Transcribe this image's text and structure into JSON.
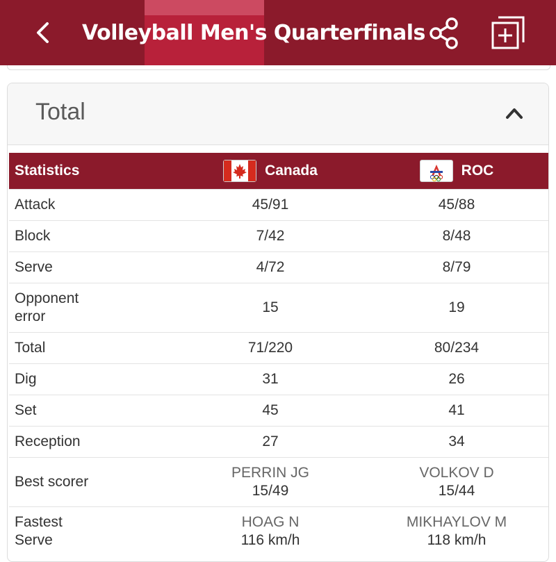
{
  "header": {
    "title": "Volleyball Men's Quarterfinals",
    "back_icon": "chevron-left-icon",
    "share_icon": "share-icon",
    "add_icon": "add-to-list-icon",
    "background_color": "#8b1a2b"
  },
  "section": {
    "title": "Total",
    "toggle_icon": "chevron-up-icon"
  },
  "table": {
    "header_label": "Statistics",
    "teams": [
      {
        "name": "Canada",
        "flag_icon": "canada-flag-icon"
      },
      {
        "name": "ROC",
        "flag_icon": "roc-flag-icon"
      }
    ],
    "rows": [
      {
        "label": "Attack",
        "a": "45/91",
        "b": "45/88"
      },
      {
        "label": "Block",
        "a": "7/42",
        "b": "8/48"
      },
      {
        "label": "Serve",
        "a": "4/72",
        "b": "8/79"
      },
      {
        "label_line1": "Opponent",
        "label_line2": "error",
        "a": "15",
        "b": "19"
      },
      {
        "label": "Total",
        "a": "71/220",
        "b": "80/234"
      },
      {
        "label": "Dig",
        "a": "31",
        "b": "26"
      },
      {
        "label": "Set",
        "a": "45",
        "b": "41"
      },
      {
        "label": "Reception",
        "a": "27",
        "b": "34"
      },
      {
        "label": "Best scorer",
        "a_name": "PERRIN JG",
        "a_value": "15/49",
        "b_name": "VOLKOV D",
        "b_value": "15/44"
      },
      {
        "label_line1": "Fastest",
        "label_line2": "Serve",
        "a_name": "HOAG N",
        "a_value": "116 km/h",
        "b_name": "MIKHAYLOV M",
        "b_value": "118 km/h"
      }
    ]
  }
}
